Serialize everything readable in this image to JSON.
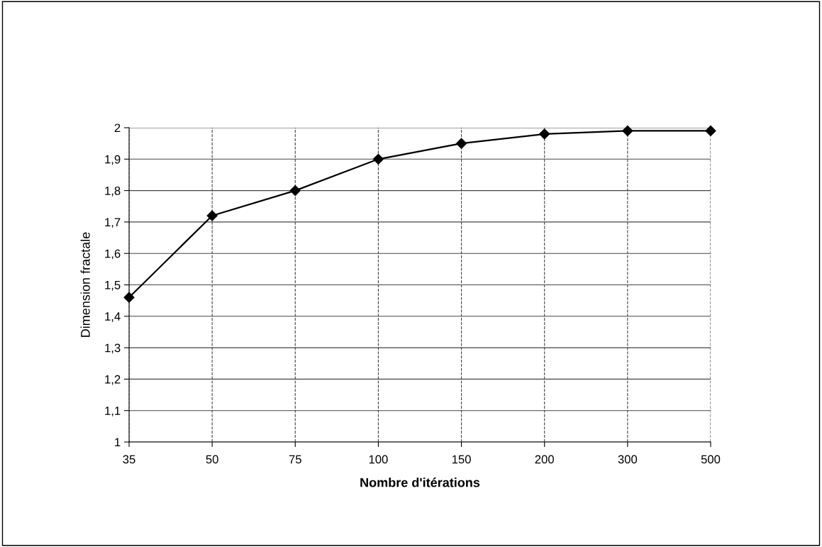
{
  "chart_data": {
    "type": "line",
    "xlabel": "Nombre d'itérations",
    "ylabel": "Dimension fractale",
    "categories": [
      "35",
      "50",
      "75",
      "100",
      "150",
      "200",
      "300",
      "500"
    ],
    "series": [
      {
        "color": "#000000",
        "values": [
          1.46,
          1.72,
          1.8,
          1.9,
          1.95,
          1.98,
          1.99,
          1.99
        ]
      }
    ],
    "ylim": [
      1,
      2
    ],
    "yticks": [
      1,
      {
        "value": 1.1,
        "label": "1,1"
      },
      {
        "value": 1.2,
        "label": "1,2"
      },
      {
        "value": 1.3,
        "label": "1,3"
      },
      {
        "value": 1.4,
        "label": "1,4"
      },
      {
        "value": 1.5,
        "label": "1,5"
      },
      {
        "value": 1.6,
        "label": "1,6"
      },
      {
        "value": 1.7,
        "label": "1,7"
      },
      {
        "value": 1.8,
        "label": "1,8"
      },
      {
        "value": 1.9,
        "label": "1,9"
      },
      2
    ],
    "grid": true,
    "marker": "diamond",
    "line_style": "solid",
    "legend": false
  }
}
